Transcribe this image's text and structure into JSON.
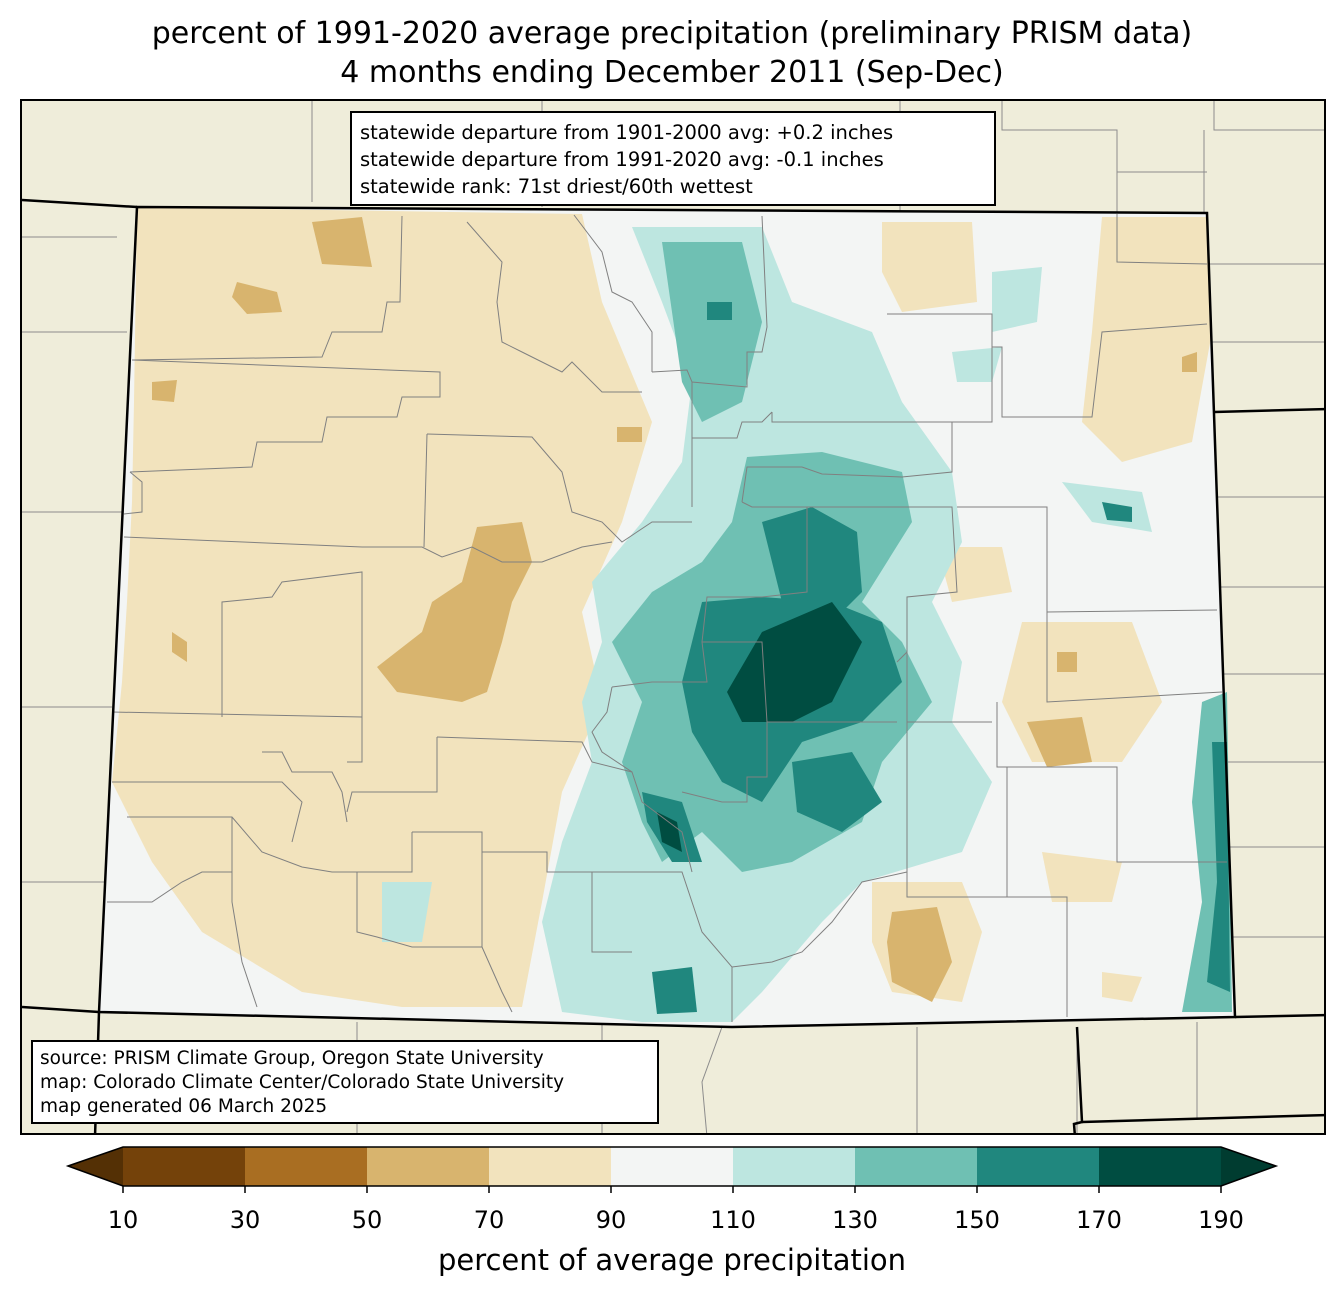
{
  "title": {
    "line1": "percent of 1991-2020 average precipitation (preliminary PRISM data)",
    "line2": "4 months ending December 2011 (Sep-Dec)"
  },
  "stats": {
    "line1": "statewide departure from 1901-2000 avg: +0.2 inches",
    "line2": "statewide departure from 1991-2020 avg: -0.1 inches",
    "line3": "statewide rank: 71st driest/60th wettest"
  },
  "source": {
    "line1": "source: PRISM Climate Group, Oregon State University",
    "line2": "map: Colorado Climate Center/Colorado State University",
    "line3": "map generated 06 March 2025"
  },
  "colorbar": {
    "label": "percent of average precipitation",
    "ticks": [
      "10",
      "30",
      "50",
      "70",
      "90",
      "110",
      "130",
      "150",
      "170",
      "190"
    ],
    "colors": {
      "under": "#543005",
      "c10_30": "#74420a",
      "c30_50": "#a96e22",
      "c50_70": "#d8b46e",
      "c70_90": "#f2e3bd",
      "c90_110": "#f3f5f4",
      "c110_130": "#bde6e0",
      "c130_150": "#6fc0b3",
      "c150_170": "#20877e",
      "c170_190": "#004d41",
      "over": "#003c30"
    }
  },
  "map_colors": {
    "background": "#efedda",
    "state_border": "#000000",
    "county_border": "#808080"
  }
}
